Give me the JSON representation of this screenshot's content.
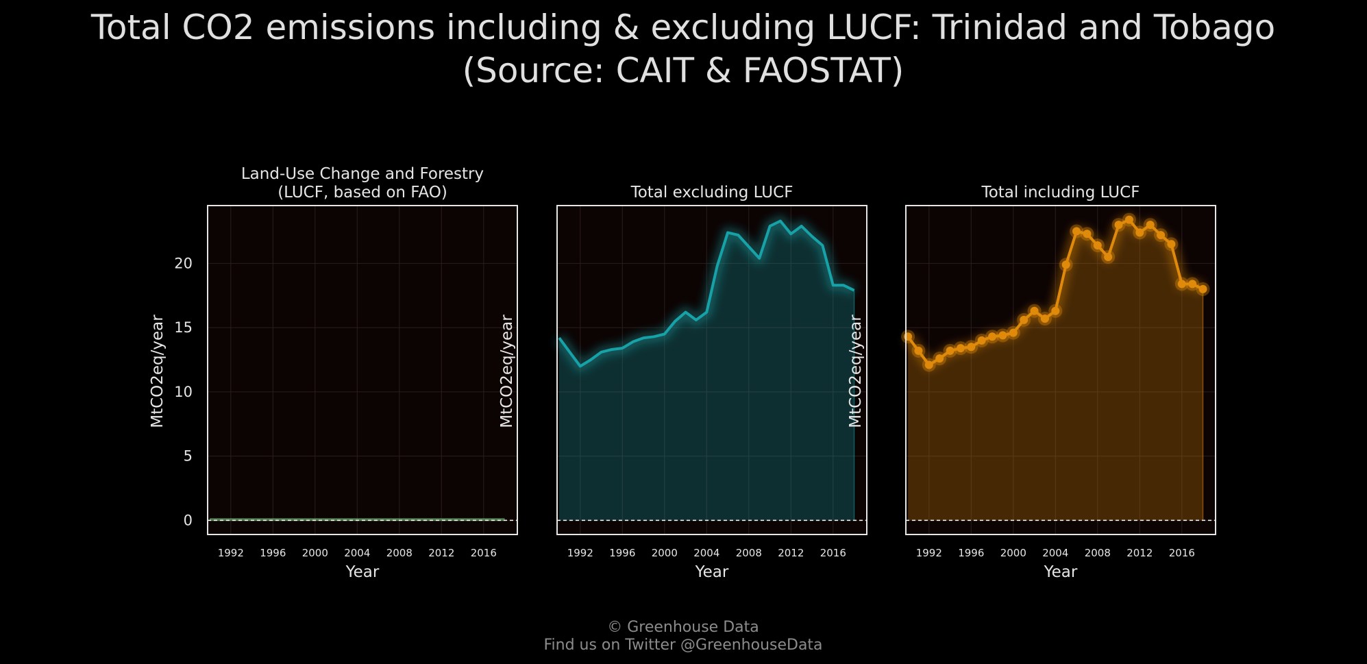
{
  "chart_data": {
    "type": "line",
    "title": "Total CO2 emissions including & excluding LUCF: Trinidad and Tobago",
    "subtitle": "(Source: CAIT & FAOSTAT)",
    "footer": [
      "© Greenhouse Data",
      "Find us on Twitter @GreenhouseData"
    ],
    "x": [
      1990,
      1991,
      1992,
      1993,
      1994,
      1995,
      1996,
      1997,
      1998,
      1999,
      2000,
      2001,
      2002,
      2003,
      2004,
      2005,
      2006,
      2007,
      2008,
      2009,
      2010,
      2011,
      2012,
      2013,
      2014,
      2015,
      2016,
      2017,
      2018
    ],
    "xticks": [
      1992,
      1996,
      2000,
      2004,
      2008,
      2012,
      2016
    ],
    "yticks": [
      0,
      5,
      10,
      15,
      20
    ],
    "ylim": [
      -1.1,
      24.5
    ],
    "xlim": [
      1989.8,
      2019.2
    ],
    "grid": true,
    "panels": [
      {
        "title_lines": [
          "Land-Use Change and Forestry",
          "(LUCF, based on FAO)"
        ],
        "ylabel": "MtCO2eq/year",
        "xlabel": "Year",
        "show_yticks": true,
        "style": "line",
        "color": "#7fc97f",
        "values": [
          0.06,
          0.06,
          0.06,
          0.06,
          0.06,
          0.06,
          0.06,
          0.06,
          0.06,
          0.06,
          0.06,
          0.06,
          0.06,
          0.06,
          0.06,
          0.06,
          0.06,
          0.06,
          0.06,
          0.06,
          0.06,
          0.06,
          0.06,
          0.06,
          0.06,
          0.06,
          0.06,
          0.06,
          0.06
        ]
      },
      {
        "title_lines": [
          "Total excluding LUCF"
        ],
        "ylabel": "MtCO2eq/year",
        "xlabel": "Year",
        "show_yticks": false,
        "style": "area",
        "color": "#17a2a8",
        "values": [
          14.2,
          13.1,
          12.0,
          12.5,
          13.1,
          13.3,
          13.4,
          13.9,
          14.2,
          14.3,
          14.5,
          15.5,
          16.2,
          15.6,
          16.2,
          19.8,
          22.4,
          22.2,
          21.3,
          20.4,
          22.9,
          23.3,
          22.3,
          22.9,
          22.1,
          21.4,
          18.3,
          18.3,
          17.9
        ]
      },
      {
        "title_lines": [
          "Total including LUCF"
        ],
        "ylabel": "MtCO2eq/year",
        "xlabel": "Year",
        "show_yticks": false,
        "style": "area-markers",
        "color": "#e08a0b",
        "values": [
          14.3,
          13.2,
          12.1,
          12.6,
          13.2,
          13.4,
          13.5,
          14.0,
          14.3,
          14.4,
          14.6,
          15.6,
          16.3,
          15.7,
          16.3,
          19.9,
          22.5,
          22.3,
          21.4,
          20.5,
          23.0,
          23.4,
          22.4,
          23.0,
          22.2,
          21.5,
          18.4,
          18.4,
          18.0
        ]
      }
    ]
  }
}
